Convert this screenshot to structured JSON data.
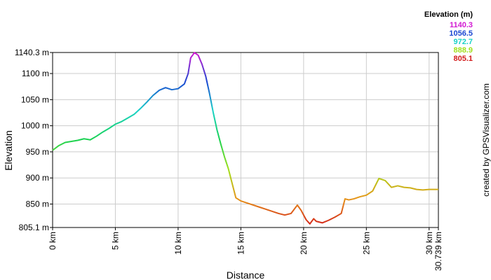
{
  "chart_data": {
    "type": "line",
    "xlabel": "Distance",
    "ylabel": "Elevation",
    "xlim": [
      0,
      30.739
    ],
    "ylim": [
      805.1,
      1140.3
    ],
    "x_ticks": [
      {
        "value": 0,
        "label": "0 km"
      },
      {
        "value": 5,
        "label": "5 km"
      },
      {
        "value": 10,
        "label": "10 km"
      },
      {
        "value": 15,
        "label": "15 km"
      },
      {
        "value": 20,
        "label": "20 km"
      },
      {
        "value": 25,
        "label": "25 km"
      },
      {
        "value": 30,
        "label": "30 km"
      },
      {
        "value": 30.739,
        "label": "30.739 km"
      }
    ],
    "y_ticks": [
      {
        "value": 805.1,
        "label": "805.1 m"
      },
      {
        "value": 850,
        "label": "850 m"
      },
      {
        "value": 900,
        "label": "900 m"
      },
      {
        "value": 950,
        "label": "950 m"
      },
      {
        "value": 1000,
        "label": "1000 m"
      },
      {
        "value": 1050,
        "label": "1050 m"
      },
      {
        "value": 1100,
        "label": "1100 m"
      },
      {
        "value": 1140.3,
        "label": "1140.3 m"
      }
    ],
    "grid": true,
    "legend": {
      "title": "Elevation (m)",
      "placement": "top-right",
      "entries": [
        {
          "label": "1140.3",
          "color": "#d21ad2"
        },
        {
          "label": "1056.5",
          "color": "#1a46d2"
        },
        {
          "label": "972.7",
          "color": "#1ad2c8"
        },
        {
          "label": "888.9",
          "color": "#a0e01a"
        },
        {
          "label": "805.1",
          "color": "#d21a1a"
        }
      ]
    },
    "series": [
      {
        "x": [
          0,
          0.5,
          1,
          1.5,
          2,
          2.5,
          3,
          3.5,
          4,
          4.5,
          5,
          5.5,
          6,
          6.5,
          7,
          7.5,
          8,
          8.5,
          9,
          9.5,
          10,
          10.5,
          10.8,
          11,
          11.3,
          11.6,
          11.9,
          12.2,
          12.5,
          12.8,
          13.1,
          13.4,
          13.7,
          14,
          14.3,
          14.6,
          15,
          15.5,
          16,
          16.5,
          17,
          17.5,
          18,
          18.5,
          19,
          19.5,
          19.8,
          20.2,
          20.5,
          20.8,
          21,
          21.5,
          22,
          22.5,
          23,
          23.3,
          23.6,
          24,
          24.5,
          25,
          25.5,
          26,
          26.5,
          27,
          27.5,
          28,
          28.5,
          29,
          29.5,
          30,
          30.739
        ],
        "y": [
          953,
          962,
          968,
          970,
          972,
          975,
          973,
          980,
          988,
          995,
          1003,
          1008,
          1015,
          1022,
          1033,
          1045,
          1058,
          1068,
          1073,
          1069,
          1071,
          1080,
          1100,
          1130,
          1140,
          1135,
          1118,
          1095,
          1062,
          1025,
          992,
          965,
          940,
          918,
          890,
          862,
          856,
          852,
          848,
          844,
          840,
          836,
          832,
          829,
          832,
          848,
          838,
          820,
          812,
          822,
          817,
          814,
          819,
          825,
          832,
          860,
          858,
          860,
          864,
          867,
          875,
          899,
          895,
          882,
          885,
          882,
          881,
          878,
          877,
          878,
          878
        ]
      }
    ]
  },
  "credit": "created by GPSVisualizer.com",
  "colors": {
    "grid": "#cccccc",
    "axis": "#000000",
    "gradient_stops": [
      "#d21a1a",
      "#e6961a",
      "#a0e01a",
      "#1ad250",
      "#1ad2c8",
      "#1a46d2",
      "#d21ad2"
    ]
  }
}
